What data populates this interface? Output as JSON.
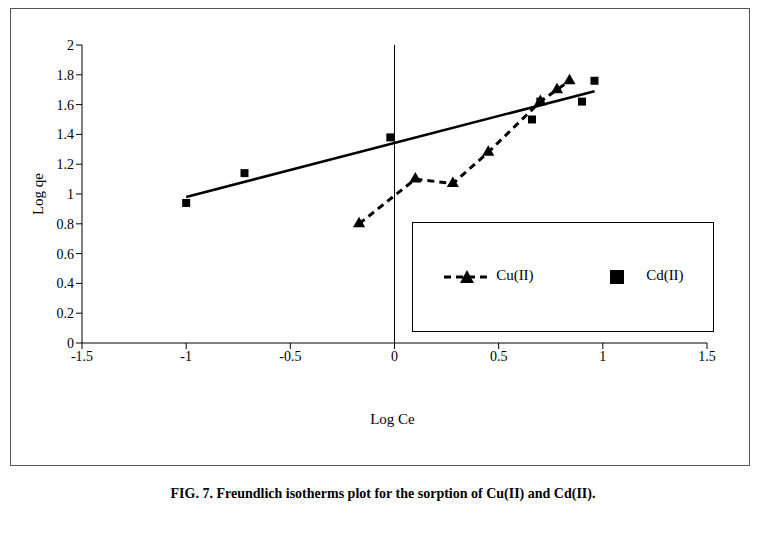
{
  "chart_data": {
    "type": "scatter",
    "title": "FIG. 7. Freundlich isotherms plot for the sorption of Cu(II) and Cd(II).",
    "x_label": "Log Ce",
    "y_label": "Log qe",
    "xlim": [
      -1.5,
      1.5
    ],
    "xticks": [
      -1.5,
      -1,
      -0.5,
      0,
      0.5,
      1,
      1.5
    ],
    "ylim": [
      0,
      2
    ],
    "yticks": [
      0,
      0.2,
      0.4,
      0.6,
      0.8,
      1,
      1.2,
      1.4,
      1.6,
      1.8,
      2
    ],
    "legend": "right",
    "grid": false,
    "series": [
      {
        "name": "Cu(II)",
        "color": "#000000",
        "marker": "triangle",
        "line_style": "dashed",
        "x": [
          -0.17,
          0.1,
          0.28,
          0.45,
          0.7,
          0.78,
          0.84
        ],
        "values": [
          0.8,
          1.1,
          1.07,
          1.28,
          1.62,
          1.7,
          1.76
        ]
      },
      {
        "name": "Cd(II)",
        "color": "#000000",
        "marker": "square",
        "line_style": "none",
        "x": [
          -1,
          -0.72,
          -0.02,
          0.66,
          0.7,
          0.9,
          0.96
        ],
        "values": [
          0.94,
          1.14,
          1.38,
          1.5,
          1.62,
          1.62,
          1.76
        ],
        "trend": {
          "x": [
            -1,
            0.96
          ],
          "values": [
            0.98,
            1.69
          ]
        }
      }
    ]
  }
}
